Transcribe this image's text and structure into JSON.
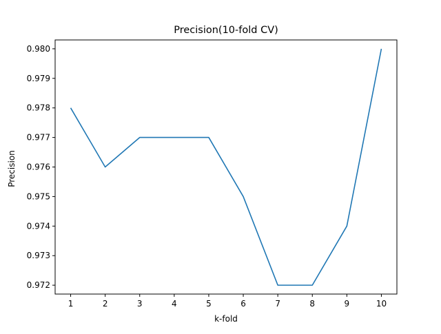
{
  "chart_data": {
    "type": "line",
    "title": "Precision(10-fold CV)",
    "xlabel": "k-fold",
    "ylabel": "Precision",
    "x": [
      1,
      2,
      3,
      4,
      5,
      6,
      7,
      8,
      9,
      10
    ],
    "series": [
      {
        "values": [
          0.978,
          0.976,
          0.977,
          0.977,
          0.977,
          0.975,
          0.972,
          0.972,
          0.974,
          0.98
        ],
        "color": "#1f77b4"
      }
    ],
    "xlim": [
      0.55,
      10.45
    ],
    "ylim": [
      0.9717,
      0.9803
    ],
    "xticks": [
      "1",
      "2",
      "3",
      "4",
      "5",
      "6",
      "7",
      "8",
      "9",
      "10"
    ],
    "xtick_values": [
      1,
      2,
      3,
      4,
      5,
      6,
      7,
      8,
      9,
      10
    ],
    "yticks": [
      "0.972",
      "0.973",
      "0.974",
      "0.975",
      "0.976",
      "0.977",
      "0.978",
      "0.979",
      "0.980"
    ],
    "ytick_values": [
      0.972,
      0.973,
      0.974,
      0.975,
      0.976,
      0.977,
      0.978,
      0.979,
      0.98
    ],
    "grid": false,
    "legend": "none"
  }
}
